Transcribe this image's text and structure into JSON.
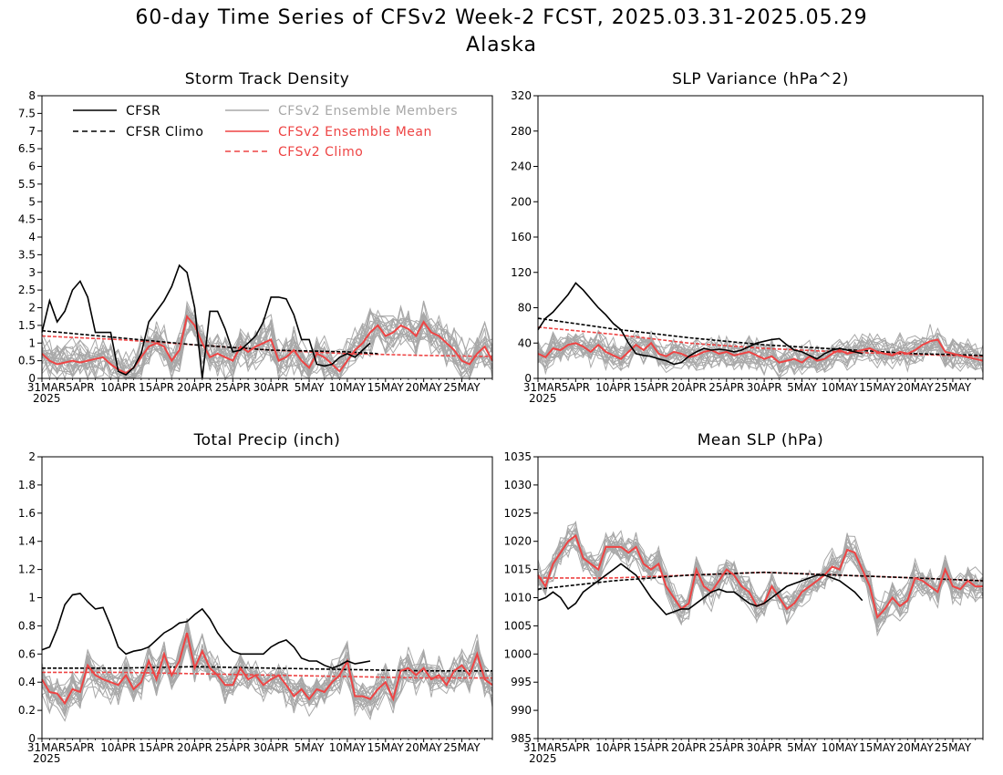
{
  "figure": {
    "title": "60-day Time Series of CFSv2 Week-2 FCST, 2025.03.31-2025.05.29",
    "subtitle": "Alaska"
  },
  "colors": {
    "cfsr": "#000000",
    "cfsr_climo": "#000000",
    "ensemble_member": "#a8a8a8",
    "ensemble_mean": "#ee4444",
    "cfsv2_climo": "#ee4444"
  },
  "legend": {
    "cfsr": "CFSR",
    "cfsr_climo": "CFSR Climo",
    "members": "CFSv2 Ensemble Members",
    "mean": "CFSv2 Ensemble Mean",
    "cfsv2_climo": "CFSv2 Climo",
    "placement": "top-left of first panel"
  },
  "x_axis": {
    "dates": [
      "31MAR",
      "5APR",
      "10APR",
      "15APR",
      "20APR",
      "25APR",
      "30APR",
      "5MAY",
      "10MAY",
      "15MAY",
      "20MAY",
      "25MAY"
    ],
    "year": "2025",
    "day_range": [
      0,
      59
    ]
  },
  "chart_data": [
    {
      "type": "line",
      "id": "storm",
      "title": "Storm Track Density",
      "ylim": [
        0,
        8
      ],
      "yticks": [
        "0",
        "0.5",
        "1",
        "1.5",
        "2",
        "2.5",
        "3",
        "3.5",
        "4",
        "4.5",
        "5",
        "5.5",
        "6",
        "6.5",
        "7",
        "7.5",
        "8"
      ],
      "cfsr": {
        "x": [
          0,
          1,
          2,
          3,
          4,
          5,
          6,
          7,
          8,
          9,
          10,
          11,
          12,
          13,
          14,
          15,
          16,
          17,
          18,
          19,
          20,
          21,
          22,
          23,
          24,
          25,
          26,
          27,
          28,
          29,
          30,
          31,
          32,
          33,
          34,
          35,
          36,
          37,
          38,
          39,
          40,
          41,
          42,
          43
        ],
        "y": [
          1.3,
          2.2,
          1.6,
          1.9,
          2.5,
          2.75,
          2.3,
          1.3,
          1.3,
          1.3,
          0.2,
          0.1,
          0.3,
          0.7,
          1.6,
          1.9,
          2.2,
          2.6,
          3.2,
          3.0,
          2.0,
          0.0,
          1.9,
          1.9,
          1.4,
          0.75,
          0.8,
          1.0,
          1.2,
          1.6,
          2.3,
          2.3,
          2.25,
          1.8,
          1.1,
          1.1,
          0.4,
          0.35,
          0.4,
          0.6,
          0.7,
          0.6,
          0.8,
          1.0
        ]
      },
      "cfsr_climo": {
        "x": [
          0,
          10,
          20,
          30,
          40,
          44
        ],
        "y": [
          1.35,
          1.15,
          0.95,
          0.8,
          0.75,
          0.7
        ]
      },
      "mean": {
        "x": [
          0,
          1,
          2,
          3,
          4,
          5,
          6,
          7,
          8,
          9,
          10,
          11,
          12,
          13,
          14,
          15,
          16,
          17,
          18,
          19,
          20,
          21,
          22,
          23,
          24,
          25,
          26,
          27,
          28,
          29,
          30,
          31,
          32,
          33,
          34,
          35,
          36,
          37,
          38,
          39,
          40,
          41,
          42,
          43,
          44,
          45,
          46,
          47,
          48,
          49,
          50,
          51,
          52,
          53,
          54,
          55,
          56,
          57,
          58,
          59
        ],
        "y": [
          0.7,
          0.5,
          0.4,
          0.45,
          0.5,
          0.45,
          0.5,
          0.55,
          0.6,
          0.4,
          0.25,
          0.15,
          0.3,
          0.6,
          0.9,
          1.0,
          0.9,
          0.5,
          0.8,
          1.75,
          1.5,
          1.0,
          0.6,
          0.7,
          0.6,
          0.5,
          0.9,
          0.75,
          0.9,
          1.0,
          1.1,
          0.5,
          0.6,
          0.8,
          0.5,
          0.3,
          0.7,
          0.6,
          0.4,
          0.2,
          0.5,
          0.8,
          1.0,
          1.3,
          1.5,
          1.2,
          1.3,
          1.5,
          1.4,
          1.2,
          1.6,
          1.3,
          1.2,
          1.0,
          0.8,
          0.5,
          0.4,
          0.7,
          0.9,
          0.5
        ]
      },
      "cfsv2_climo": {
        "x": [
          0,
          10,
          20,
          30,
          40,
          50,
          59
        ],
        "y": [
          1.2,
          1.1,
          0.95,
          0.8,
          0.7,
          0.65,
          0.62
        ]
      },
      "members": {
        "count": 20,
        "spread": 0.55,
        "base": "mean"
      }
    },
    {
      "type": "line",
      "id": "slpvar",
      "title": "SLP Variance (hPa^2)",
      "ylim": [
        0,
        320
      ],
      "yticks": [
        "0",
        "40",
        "80",
        "120",
        "160",
        "200",
        "240",
        "280",
        "320"
      ],
      "cfsr": {
        "x": [
          0,
          1,
          2,
          3,
          4,
          5,
          6,
          7,
          8,
          9,
          10,
          11,
          12,
          13,
          14,
          15,
          16,
          17,
          18,
          19,
          20,
          21,
          22,
          23,
          24,
          25,
          26,
          27,
          28,
          29,
          30,
          31,
          32,
          33,
          34,
          35,
          36,
          37,
          38,
          39,
          40,
          41,
          42,
          43
        ],
        "y": [
          55,
          68,
          75,
          85,
          95,
          108,
          100,
          90,
          80,
          72,
          62,
          55,
          40,
          28,
          26,
          25,
          22,
          20,
          16,
          18,
          25,
          30,
          34,
          32,
          33,
          32,
          30,
          32,
          36,
          40,
          42,
          44,
          45,
          38,
          32,
          30,
          26,
          22,
          28,
          32,
          34,
          32,
          30,
          28
        ]
      },
      "cfsr_climo": {
        "x": [
          0,
          10,
          20,
          30,
          40,
          50,
          59
        ],
        "y": [
          68,
          56,
          46,
          38,
          33,
          28,
          26
        ]
      },
      "mean": {
        "x": [
          0,
          1,
          2,
          3,
          4,
          5,
          6,
          7,
          8,
          9,
          10,
          11,
          12,
          13,
          14,
          15,
          16,
          17,
          18,
          19,
          20,
          21,
          22,
          23,
          24,
          25,
          26,
          27,
          28,
          29,
          30,
          31,
          32,
          33,
          34,
          35,
          36,
          37,
          38,
          39,
          40,
          41,
          42,
          43,
          44,
          45,
          46,
          47,
          48,
          49,
          50,
          51,
          52,
          53,
          54,
          55,
          56,
          57,
          58,
          59
        ],
        "y": [
          28,
          24,
          34,
          32,
          38,
          40,
          36,
          30,
          38,
          30,
          26,
          22,
          30,
          38,
          32,
          40,
          28,
          25,
          30,
          28,
          24,
          26,
          30,
          32,
          28,
          30,
          26,
          28,
          30,
          26,
          22,
          25,
          18,
          20,
          22,
          18,
          25,
          20,
          22,
          28,
          32,
          28,
          30,
          32,
          34,
          30,
          28,
          26,
          30,
          28,
          32,
          38,
          42,
          44,
          30,
          28,
          26,
          24,
          22,
          20
        ]
      },
      "cfsv2_climo": {
        "x": [
          0,
          10,
          20,
          30,
          40,
          50,
          59
        ],
        "y": [
          58,
          50,
          40,
          34,
          30,
          27,
          25
        ]
      },
      "members": {
        "count": 20,
        "spread": 16,
        "base": "mean"
      }
    },
    {
      "type": "line",
      "id": "precip",
      "title": "Total Precip (inch)",
      "ylim": [
        0,
        2
      ],
      "yticks": [
        "0",
        "0.2",
        "0.4",
        "0.6",
        "0.8",
        "1",
        "1.2",
        "1.4",
        "1.6",
        "1.8",
        "2"
      ],
      "cfsr": {
        "x": [
          0,
          1,
          2,
          3,
          4,
          5,
          6,
          7,
          8,
          9,
          10,
          11,
          12,
          13,
          14,
          15,
          16,
          17,
          18,
          19,
          20,
          21,
          22,
          23,
          24,
          25,
          26,
          27,
          28,
          29,
          30,
          31,
          32,
          33,
          34,
          35,
          36,
          37,
          38,
          39,
          40,
          41,
          42,
          43
        ],
        "y": [
          0.63,
          0.65,
          0.78,
          0.95,
          1.02,
          1.03,
          0.97,
          0.92,
          0.93,
          0.8,
          0.65,
          0.6,
          0.62,
          0.63,
          0.65,
          0.7,
          0.75,
          0.78,
          0.82,
          0.83,
          0.88,
          0.92,
          0.85,
          0.75,
          0.68,
          0.62,
          0.6,
          0.6,
          0.6,
          0.6,
          0.65,
          0.68,
          0.7,
          0.65,
          0.57,
          0.55,
          0.55,
          0.52,
          0.5,
          0.52,
          0.55,
          0.53,
          0.54,
          0.55
        ]
      },
      "cfsr_climo": {
        "x": [
          0,
          10,
          20,
          30,
          40,
          50,
          59
        ],
        "y": [
          0.5,
          0.5,
          0.51,
          0.5,
          0.49,
          0.48,
          0.48
        ]
      },
      "mean": {
        "x": [
          0,
          1,
          2,
          3,
          4,
          5,
          6,
          7,
          8,
          9,
          10,
          11,
          12,
          13,
          14,
          15,
          16,
          17,
          18,
          19,
          20,
          21,
          22,
          23,
          24,
          25,
          26,
          27,
          28,
          29,
          30,
          31,
          32,
          33,
          34,
          35,
          36,
          37,
          38,
          39,
          40,
          41,
          42,
          43,
          44,
          45,
          46,
          47,
          48,
          49,
          50,
          51,
          52,
          53,
          54,
          55,
          56,
          57,
          58,
          59
        ],
        "y": [
          0.42,
          0.33,
          0.32,
          0.25,
          0.35,
          0.33,
          0.52,
          0.45,
          0.42,
          0.4,
          0.38,
          0.45,
          0.35,
          0.4,
          0.55,
          0.42,
          0.6,
          0.45,
          0.55,
          0.75,
          0.5,
          0.62,
          0.5,
          0.45,
          0.38,
          0.38,
          0.5,
          0.42,
          0.45,
          0.38,
          0.42,
          0.45,
          0.38,
          0.3,
          0.35,
          0.28,
          0.35,
          0.33,
          0.4,
          0.45,
          0.55,
          0.3,
          0.3,
          0.28,
          0.35,
          0.4,
          0.28,
          0.48,
          0.5,
          0.45,
          0.5,
          0.42,
          0.45,
          0.38,
          0.48,
          0.52,
          0.45,
          0.6,
          0.42,
          0.38
        ]
      },
      "cfsv2_climo": {
        "x": [
          0,
          10,
          20,
          30,
          40,
          50,
          59
        ],
        "y": [
          0.47,
          0.47,
          0.46,
          0.45,
          0.44,
          0.43,
          0.43
        ]
      },
      "members": {
        "count": 20,
        "spread": 0.12,
        "base": "mean"
      }
    },
    {
      "type": "line",
      "id": "mslp",
      "title": "Mean SLP (hPa)",
      "ylim": [
        985,
        1035
      ],
      "yticks": [
        "985",
        "990",
        "995",
        "1000",
        "1005",
        "1010",
        "1015",
        "1020",
        "1025",
        "1030",
        "1035"
      ],
      "cfsr": {
        "x": [
          0,
          1,
          2,
          3,
          4,
          5,
          6,
          7,
          8,
          9,
          10,
          11,
          12,
          13,
          14,
          15,
          16,
          17,
          18,
          19,
          20,
          21,
          22,
          23,
          24,
          25,
          26,
          27,
          28,
          29,
          30,
          31,
          32,
          33,
          34,
          35,
          36,
          37,
          38,
          39,
          40,
          41,
          42,
          43
        ],
        "y": [
          1009.5,
          1010,
          1011,
          1010,
          1008,
          1009,
          1011,
          1012,
          1013,
          1014,
          1015,
          1016,
          1015,
          1014,
          1012,
          1010,
          1008.5,
          1007,
          1007.5,
          1008,
          1008,
          1009,
          1010,
          1011,
          1011.5,
          1011,
          1011,
          1010,
          1009,
          1008.5,
          1009,
          1010,
          1011,
          1012,
          1012.5,
          1013,
          1013.5,
          1014,
          1014,
          1013.5,
          1013,
          1012,
          1011,
          1009.5
        ]
      },
      "cfsr_climo": {
        "x": [
          0,
          10,
          20,
          30,
          40,
          50,
          59
        ],
        "y": [
          1011.5,
          1013,
          1014,
          1014.5,
          1014,
          1013.5,
          1013
        ]
      },
      "mean": {
        "x": [
          0,
          1,
          2,
          3,
          4,
          5,
          6,
          7,
          8,
          9,
          10,
          11,
          12,
          13,
          14,
          15,
          16,
          17,
          18,
          19,
          20,
          21,
          22,
          23,
          24,
          25,
          26,
          27,
          28,
          29,
          30,
          31,
          32,
          33,
          34,
          35,
          36,
          37,
          38,
          39,
          40,
          41,
          42,
          43,
          44,
          45,
          46,
          47,
          48,
          49,
          50,
          51,
          52,
          53,
          54,
          55,
          56,
          57,
          58,
          59
        ],
        "y": [
          1014,
          1012,
          1016,
          1018,
          1020,
          1021,
          1017,
          1016,
          1015,
          1019,
          1019,
          1019,
          1018,
          1019,
          1016,
          1015,
          1016,
          1012,
          1010,
          1008,
          1009,
          1015,
          1012,
          1011,
          1013,
          1015,
          1014,
          1012,
          1011,
          1008.5,
          1009,
          1012,
          1010,
          1008,
          1009,
          1011,
          1012,
          1013,
          1014,
          1015.5,
          1015,
          1018.5,
          1018,
          1015,
          1012,
          1006.5,
          1008,
          1010,
          1008.5,
          1009.5,
          1013.5,
          1013,
          1012,
          1011,
          1015,
          1012,
          1011.5,
          1013,
          1012,
          1012
        ]
      },
      "cfsv2_climo": {
        "x": [
          0,
          10,
          20,
          30,
          40,
          50,
          59
        ],
        "y": [
          1013.5,
          1013.5,
          1014,
          1014.5,
          1014,
          1013.5,
          1013
        ]
      },
      "members": {
        "count": 20,
        "spread": 2.5,
        "base": "mean"
      }
    }
  ]
}
